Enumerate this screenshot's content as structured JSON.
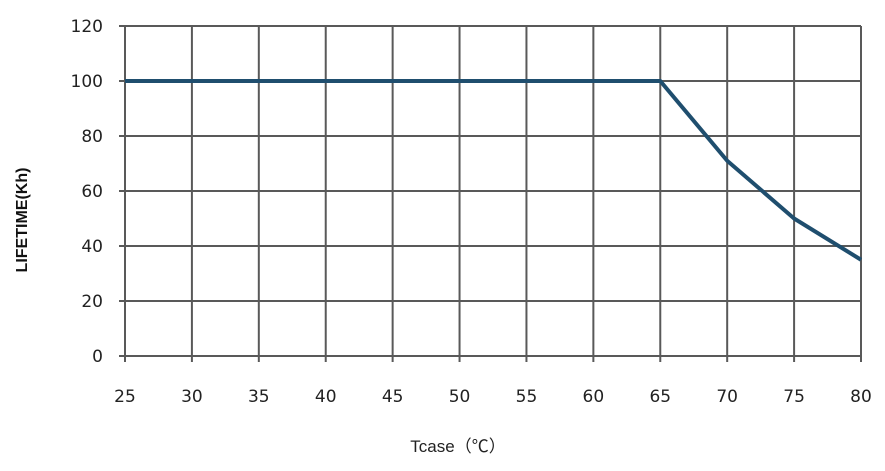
{
  "chart_data": {
    "type": "line",
    "title": "",
    "xlabel": "Tcase（℃）",
    "ylabel": "LIFETIME(Kh)",
    "xlim": [
      25,
      80
    ],
    "ylim": [
      0,
      120
    ],
    "x_ticks": [
      25,
      30,
      35,
      40,
      45,
      50,
      55,
      60,
      65,
      70,
      75,
      80
    ],
    "y_ticks": [
      0,
      20,
      40,
      60,
      80,
      100,
      120
    ],
    "grid": true,
    "series": [
      {
        "x": [
          25,
          65,
          70,
          75,
          80
        ],
        "y": [
          100,
          100,
          71,
          50,
          35
        ],
        "color": "#1f4e6e"
      }
    ],
    "grid_color": "#595959"
  }
}
